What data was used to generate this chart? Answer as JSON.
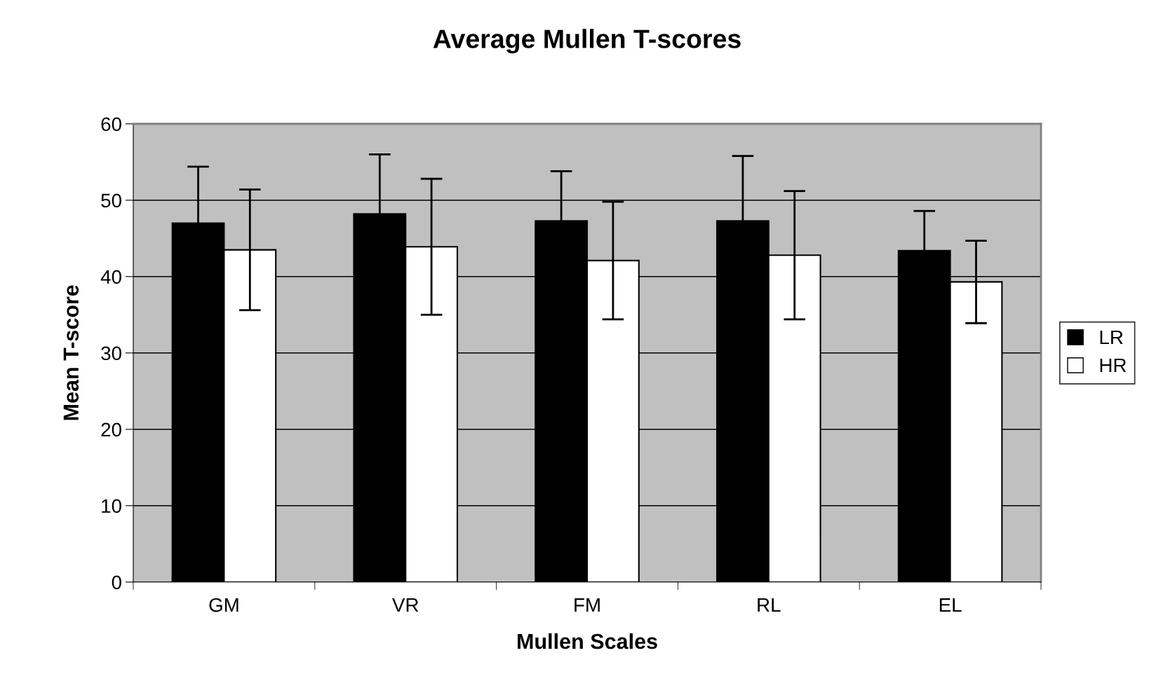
{
  "chart_data": {
    "type": "bar",
    "title": "Average Mullen T-scores",
    "xlabel": "Mullen Scales",
    "ylabel": "Mean T-score",
    "categories": [
      "GM",
      "VR",
      "FM",
      "RL",
      "EL"
    ],
    "series": [
      {
        "name": "LR",
        "color": "#000000",
        "values": [
          47.0,
          48.2,
          47.3,
          47.3,
          43.4
        ],
        "errors": [
          7.4,
          7.8,
          6.5,
          8.5,
          5.2
        ]
      },
      {
        "name": "HR",
        "color": "#ffffff",
        "values": [
          43.5,
          43.9,
          42.1,
          42.8,
          39.3
        ],
        "errors": [
          7.9,
          8.9,
          7.7,
          8.4,
          5.4
        ]
      }
    ],
    "ylim": [
      0,
      60
    ],
    "yticks": [
      0,
      10,
      20,
      30,
      40,
      50,
      60
    ],
    "grid": "y",
    "legend": "right"
  }
}
